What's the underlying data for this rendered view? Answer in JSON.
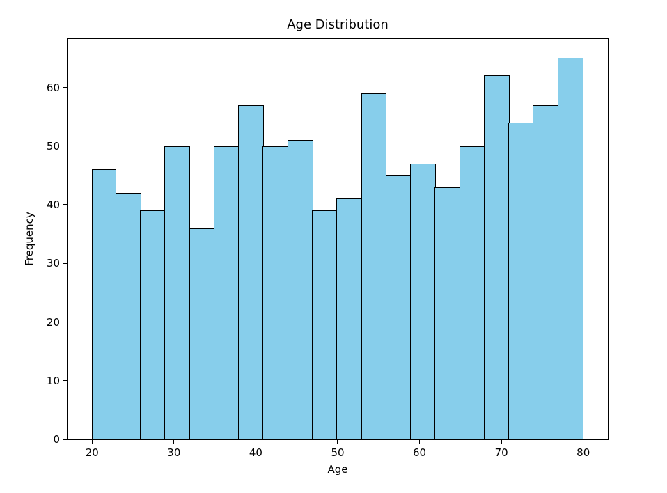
{
  "chart_data": {
    "type": "bar",
    "title": "Age Distribution",
    "xlabel": "Age",
    "ylabel": "Frequency",
    "bin_edges": [
      20,
      23,
      26,
      29,
      32,
      35,
      38,
      41,
      44,
      47,
      50,
      53,
      56,
      59,
      62,
      65,
      68,
      71,
      74,
      77,
      80
    ],
    "values": [
      46,
      42,
      39,
      50,
      36,
      50,
      57,
      50,
      51,
      39,
      41,
      59,
      45,
      47,
      43,
      50,
      62,
      54,
      57,
      65
    ],
    "xticks": [
      20,
      30,
      40,
      50,
      60,
      70,
      80
    ],
    "yticks": [
      0,
      10,
      20,
      30,
      40,
      50,
      60
    ],
    "xlim": [
      17,
      83
    ],
    "ylim": [
      0,
      68.25
    ],
    "grid": false,
    "legend": "none",
    "colors": {
      "bar_fill": "#87CEEB",
      "bar_edge": "#000000",
      "axis": "#000000",
      "text": "#000000",
      "background": "#FFFFFF"
    }
  }
}
